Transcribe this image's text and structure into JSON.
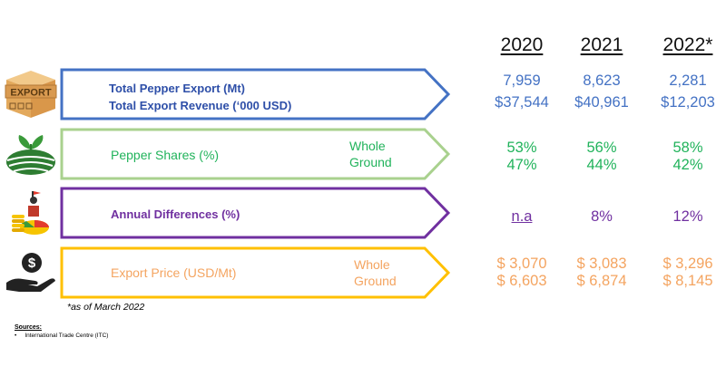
{
  "years": [
    "2020",
    "2021",
    "2022*"
  ],
  "rows": {
    "export": {
      "label1": "Total Pepper Export (Mt)",
      "label2": "Total Export Revenue (‘000 USD)",
      "icon_text": "EXPORT",
      "icon": "export-box-icon",
      "color": "#4472c4",
      "values1": [
        "7,959",
        "8,623",
        "2,281"
      ],
      "values2": [
        "$37,544",
        "$40,961",
        "$12,203"
      ]
    },
    "shares": {
      "label": "Pepper Shares (%)",
      "sub1": "Whole",
      "sub2": "Ground",
      "icon": "farmland-sprout-icon",
      "color": "#21b35b",
      "border": "#a9d18e",
      "values1": [
        "53%",
        "56%",
        "58%"
      ],
      "values2": [
        "47%",
        "44%",
        "42%"
      ]
    },
    "diff": {
      "label": "Annual Differences (%)",
      "icon": "coins-growth-icon",
      "color": "#7030a0",
      "values": [
        "n.a",
        "8%",
        "12%"
      ]
    },
    "price": {
      "label": "Export Price (USD/Mt)",
      "sub1": "Whole",
      "sub2": "Ground",
      "icon": "dollar-hand-icon",
      "color": "#f4a460",
      "border": "#ffc000",
      "values1": [
        "$ 3,070",
        "$ 3,083",
        "$ 3,296"
      ],
      "values2": [
        "$ 6,603",
        "$ 6,874",
        "$ 8,145"
      ]
    }
  },
  "footnote": "*as of March 2022",
  "sources": {
    "title": "Sources:",
    "items": [
      "International Trade Centre (ITC)"
    ]
  }
}
